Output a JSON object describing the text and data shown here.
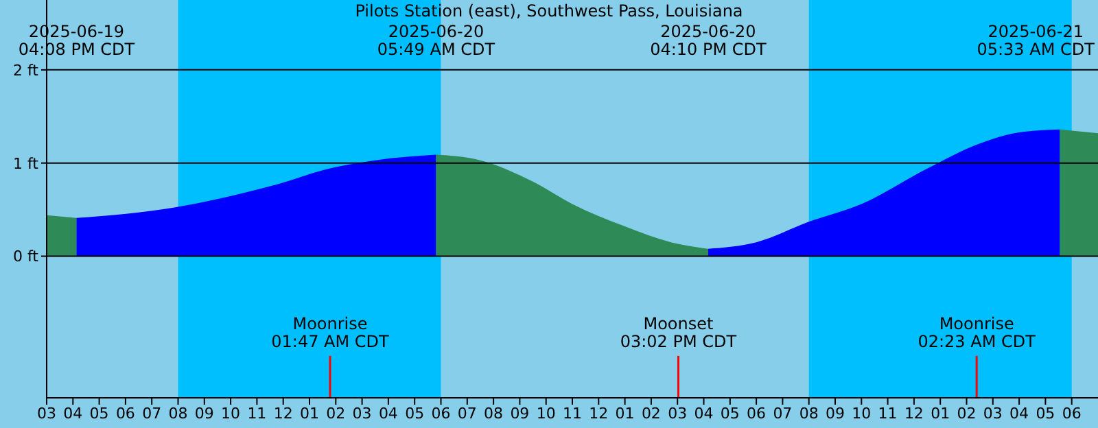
{
  "chart_data": {
    "type": "area",
    "title": "Pilots Station (east), Southwest Pass, Louisiana",
    "series": [
      {
        "color": "#2e8b57",
        "x": [
          "2025-06-19T15:00",
          "2025-06-19T16:08"
        ],
        "values": [
          0.44,
          0.41
        ]
      },
      {
        "color": "#0000ff",
        "x": [
          "2025-06-19T16:08",
          "2025-06-19T20:00",
          "2025-06-19T22:30",
          "2025-06-19T23:45",
          "2025-06-20T01:45",
          "2025-06-20T03:30",
          "2025-06-20T05:49"
        ],
        "values": [
          0.41,
          0.53,
          0.68,
          0.77,
          0.94,
          1.03,
          1.09
        ]
      },
      {
        "color": "#2e8b57",
        "x": [
          "2025-06-20T05:49",
          "2025-06-20T07:30",
          "2025-06-20T09:30",
          "2025-06-20T11:00",
          "2025-06-20T13:00",
          "2025-06-20T14:45",
          "2025-06-20T16:10"
        ],
        "values": [
          1.09,
          1.03,
          0.8,
          0.56,
          0.32,
          0.15,
          0.08
        ]
      },
      {
        "color": "#0000ff",
        "x": [
          "2025-06-20T16:10",
          "2025-06-20T18:00",
          "2025-06-20T20:00",
          "2025-06-20T22:00",
          "2025-06-21T00:30",
          "2025-06-21T02:30",
          "2025-06-21T04:00",
          "2025-06-21T05:33"
        ],
        "values": [
          0.08,
          0.15,
          0.37,
          0.56,
          0.94,
          1.21,
          1.33,
          1.36
        ]
      },
      {
        "color": "#2e8b57",
        "x": [
          "2025-06-21T05:33",
          "2025-06-21T07:00"
        ],
        "values": [
          1.36,
          1.32
        ]
      }
    ],
    "xlim": [
      "2025-06-19T15:00",
      "2025-06-21T07:00"
    ],
    "xticks": [
      {
        "value": "2025-06-19T15:00",
        "label": "03"
      },
      {
        "value": "2025-06-19T16:00",
        "label": "04"
      },
      {
        "value": "2025-06-19T17:00",
        "label": "05"
      },
      {
        "value": "2025-06-19T18:00",
        "label": "06"
      },
      {
        "value": "2025-06-19T19:00",
        "label": "07"
      },
      {
        "value": "2025-06-19T20:00",
        "label": "08"
      },
      {
        "value": "2025-06-19T21:00",
        "label": "09"
      },
      {
        "value": "2025-06-19T22:00",
        "label": "10"
      },
      {
        "value": "2025-06-19T23:00",
        "label": "11"
      },
      {
        "value": "2025-06-20T00:00",
        "label": "12"
      },
      {
        "value": "2025-06-20T01:00",
        "label": "01"
      },
      {
        "value": "2025-06-20T02:00",
        "label": "02"
      },
      {
        "value": "2025-06-20T03:00",
        "label": "03"
      },
      {
        "value": "2025-06-20T04:00",
        "label": "04"
      },
      {
        "value": "2025-06-20T05:00",
        "label": "05"
      },
      {
        "value": "2025-06-20T06:00",
        "label": "06"
      },
      {
        "value": "2025-06-20T07:00",
        "label": "07"
      },
      {
        "value": "2025-06-20T08:00",
        "label": "08"
      },
      {
        "value": "2025-06-20T09:00",
        "label": "09"
      },
      {
        "value": "2025-06-20T10:00",
        "label": "10"
      },
      {
        "value": "2025-06-20T11:00",
        "label": "11"
      },
      {
        "value": "2025-06-20T12:00",
        "label": "12"
      },
      {
        "value": "2025-06-20T13:00",
        "label": "01"
      },
      {
        "value": "2025-06-20T14:00",
        "label": "02"
      },
      {
        "value": "2025-06-20T15:00",
        "label": "03"
      },
      {
        "value": "2025-06-20T16:00",
        "label": "04"
      },
      {
        "value": "2025-06-20T17:00",
        "label": "05"
      },
      {
        "value": "2025-06-20T18:00",
        "label": "06"
      },
      {
        "value": "2025-06-20T19:00",
        "label": "07"
      },
      {
        "value": "2025-06-20T20:00",
        "label": "08"
      },
      {
        "value": "2025-06-20T21:00",
        "label": "09"
      },
      {
        "value": "2025-06-20T22:00",
        "label": "10"
      },
      {
        "value": "2025-06-20T23:00",
        "label": "11"
      },
      {
        "value": "2025-06-21T00:00",
        "label": "12"
      },
      {
        "value": "2025-06-21T01:00",
        "label": "01"
      },
      {
        "value": "2025-06-21T02:00",
        "label": "02"
      },
      {
        "value": "2025-06-21T03:00",
        "label": "03"
      },
      {
        "value": "2025-06-21T04:00",
        "label": "04"
      },
      {
        "value": "2025-06-21T05:00",
        "label": "05"
      },
      {
        "value": "2025-06-21T06:00",
        "label": "06"
      }
    ],
    "ylim": [
      -1.52,
      2.75
    ],
    "yticks": [
      {
        "value": 0,
        "label": "0 ft"
      },
      {
        "value": 1,
        "label": "1 ft"
      },
      {
        "value": 2,
        "label": "2 ft"
      }
    ],
    "grid": "y",
    "bands": [
      {
        "axis": "x",
        "from": "2025-06-19T20:00",
        "to": "2025-06-20T06:00",
        "color": "#00bfff"
      },
      {
        "axis": "x",
        "from": "2025-06-20T20:00",
        "to": "2025-06-21T06:00",
        "color": "#00bfff"
      }
    ],
    "ref_lines": [
      {
        "axis": "x",
        "value": "2025-06-20T01:47",
        "label": "Moonrise\n01:47 AM CDT",
        "color": "#ff0000"
      },
      {
        "axis": "x",
        "value": "2025-06-20T15:02",
        "label": "Moonset\n03:02 PM CDT",
        "color": "#ff0000"
      },
      {
        "axis": "x",
        "value": "2025-06-21T02:23",
        "label": "Moonrise\n02:23 AM CDT",
        "color": "#ff0000"
      }
    ],
    "annotations": [
      "2025-06-19\n04:08 PM CDT",
      "2025-06-20\n05:49 AM CDT",
      "2025-06-20\n04:10 PM CDT",
      "2025-06-21\n05:33 AM CDT"
    ],
    "legend": false
  }
}
